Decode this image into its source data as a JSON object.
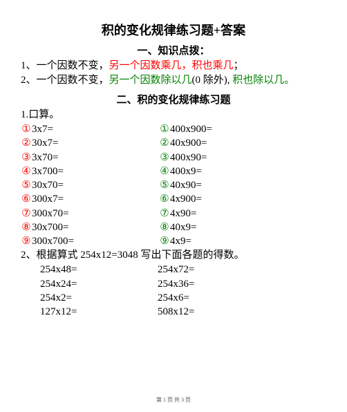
{
  "title": "积的变化规律练习题+答案",
  "section1_title": "一、知识点拨：",
  "rule1": {
    "pre": "1、一个因数不变，",
    "mid": "另一个因数乘几，积也乘几",
    "post": "；"
  },
  "rule2": {
    "pre": "2、一个因数不变，",
    "mid": "另一个因数除以几",
    "paren": "(0 除外)",
    "comma": ",",
    "tail": " 积也除以几",
    "end": "。"
  },
  "section2_title": "二、积的变化规律练习题",
  "q1_label": "1.口算。",
  "circles": {
    "1": "①",
    "2": "②",
    "3": "③",
    "4": "④",
    "5": "⑤",
    "6": "⑥",
    "7": "⑦",
    "8": "⑧",
    "9": "⑨"
  },
  "col1": [
    "3x7=",
    "30x7=",
    "3x70=",
    "3x700=",
    "30x70=",
    "300x7=",
    "300x70=",
    "30x700=",
    "300x700="
  ],
  "col2": [
    "400x900=",
    "40x900=",
    "400x90=",
    "400x9=",
    "40x90=",
    "4x900=",
    "4x90=",
    "40x9=",
    "4x9="
  ],
  "colors": {
    "row1": "#ff0000",
    "row2": "#ff0000",
    "row3": "#ff0000",
    "row4": "#ff0000",
    "row5": "#ff0000",
    "row6": "#ff0000",
    "row7": "#ff0000",
    "row8": "#ff0000",
    "row9": "#ff0000",
    "rrow1": "#008000",
    "rrow2": "#008000",
    "rrow3": "#008000",
    "rrow4": "#008000",
    "rrow5": "#008000",
    "rrow6": "#008000",
    "rrow7": "#008000",
    "rrow8": "#008000",
    "rrow9": "#008000"
  },
  "q2_label": "2、根据算式 254x12=3048 写出下面各题的得数。",
  "p2_left": [
    "254x48=",
    "254x24=",
    "254x2=",
    "127x12="
  ],
  "p2_right": [
    "254x72=",
    "254x36=",
    "254x6=",
    "508x12="
  ],
  "footer": "第 1 页 共 3 页"
}
